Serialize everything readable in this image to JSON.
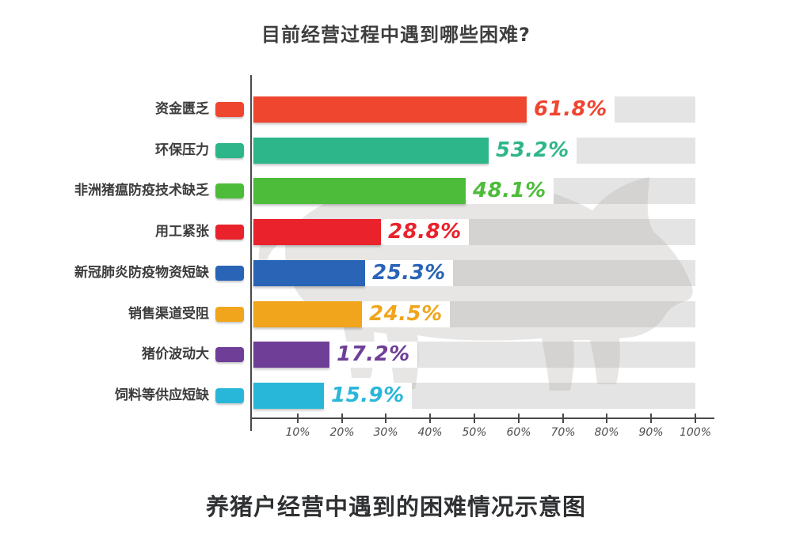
{
  "chart_data": {
    "type": "bar",
    "orientation": "horizontal",
    "title": "目前经营过程中遇到哪些困难?",
    "caption": "养猪户经营中遇到的困难情况示意图",
    "categories": [
      "资金匮乏",
      "环保压力",
      "非洲猪瘟防疫技术缺乏",
      "用工紧张",
      "新冠肺炎防疫物资短缺",
      "销售渠道受阻",
      "猪价波动大",
      "饲料等供应短缺"
    ],
    "values": [
      61.8,
      53.2,
      48.1,
      28.8,
      25.3,
      24.5,
      17.2,
      15.9
    ],
    "value_labels": [
      "61.8%",
      "53.2%",
      "48.1%",
      "28.8%",
      "25.3%",
      "24.5%",
      "17.2%",
      "15.9%"
    ],
    "bar_colors": [
      "#ef4630",
      "#2eb68b",
      "#4dbc3a",
      "#e9222b",
      "#2a64b6",
      "#f0a51c",
      "#6f3f97",
      "#29b7d9"
    ],
    "track_color": "#e4e4e4",
    "xlim": [
      0,
      100
    ],
    "x_ticks": [
      "10%",
      "20%",
      "30%",
      "40%",
      "50%",
      "60%",
      "70%",
      "80%",
      "90%",
      "100%"
    ],
    "grid": false,
    "legend_position": "row-swatches-left-of-axis",
    "watermark": "pig-silhouette",
    "axis_color": "#4a4a4a"
  }
}
